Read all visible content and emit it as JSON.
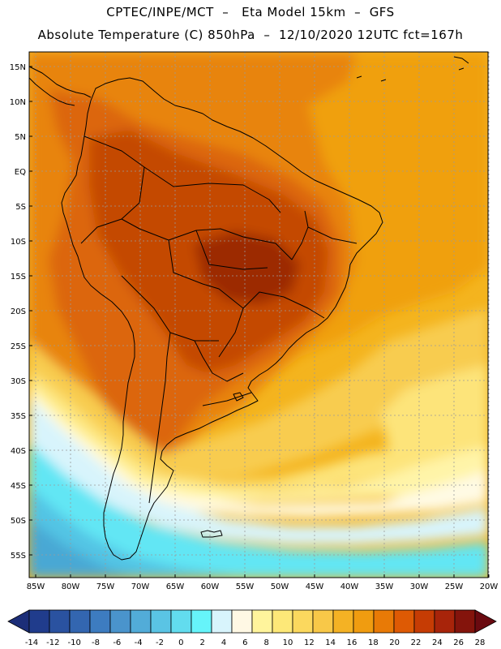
{
  "header": {
    "line1": "CPTEC/INPE/MCT  –   Eta Model 15km  –  GFS",
    "line2": "Absolute Temperature (C) 850hPa  –  12/10/2020 12UTC fct=167h"
  },
  "map": {
    "region": "South America",
    "lat_labels": [
      "15N",
      "10N",
      "5N",
      "EQ",
      "5S",
      "10S",
      "15S",
      "20S",
      "25S",
      "30S",
      "35S",
      "40S",
      "45S",
      "50S",
      "55S"
    ],
    "lon_labels": [
      "85W",
      "80W",
      "75W",
      "70W",
      "65W",
      "60W",
      "55W",
      "50W",
      "45W",
      "40W",
      "35W",
      "30W",
      "25W",
      "20W"
    ]
  },
  "colorbar": {
    "labels": [
      "-14",
      "-12",
      "-10",
      "-8",
      "-6",
      "-4",
      "-2",
      "0",
      "2",
      "4",
      "6",
      "8",
      "10",
      "12",
      "14",
      "16",
      "18",
      "20",
      "22",
      "24",
      "26",
      "28"
    ],
    "colors": [
      "#203c8c",
      "#2a52a0",
      "#3366b0",
      "#3d7cc0",
      "#4a94cc",
      "#52acd8",
      "#5ac4e4",
      "#62dcee",
      "#66f4fa",
      "#d8f4fc",
      "#fff8e4",
      "#fff49c",
      "#fde878",
      "#fbd85e",
      "#f8c848",
      "#f4b224",
      "#f09c10",
      "#e87a06",
      "#de5a04",
      "#c63c04",
      "#a8240a",
      "#84140c"
    ],
    "under_color": "#1c2e78",
    "over_color": "#6a0a10"
  },
  "field_colors": {
    "c28": "#9c2c04",
    "c24": "#c44a06",
    "c22": "#dc6608",
    "c20": "#e8840a",
    "c18": "#f0a010",
    "c16": "#f4b41e",
    "c14": "#f8cc50",
    "c12": "#fde47a",
    "c10": "#fff4a8",
    "c8": "#fffae4",
    "c6": "#d8f4fc",
    "c4": "#62e6f4",
    "c2": "#52c4e4",
    "c0": "#4aa8d4",
    "cm2": "#3c88c4"
  }
}
